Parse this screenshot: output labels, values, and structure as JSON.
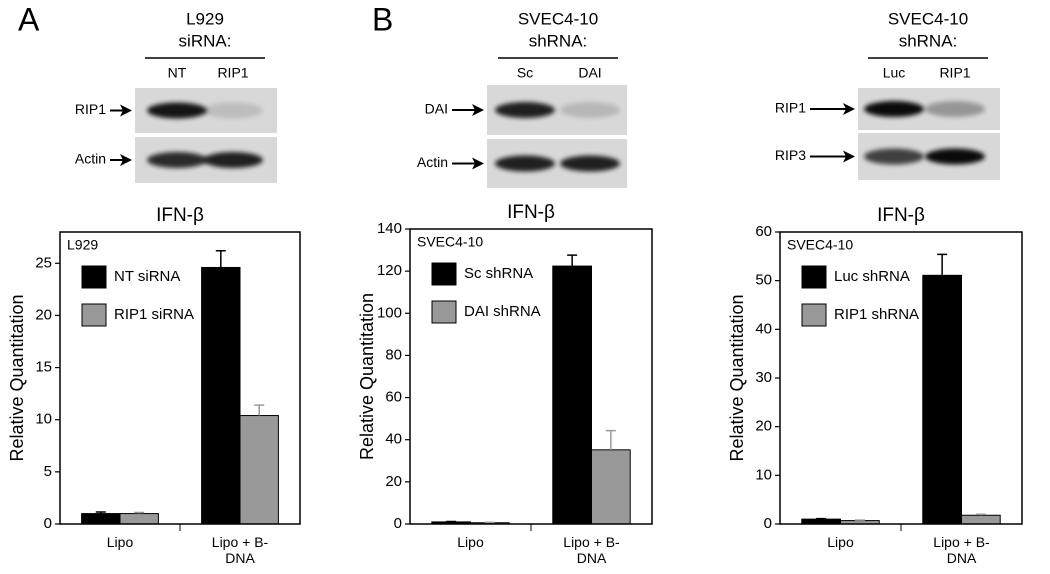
{
  "panel_labels": [
    "A",
    "B"
  ],
  "blots": [
    {
      "header": [
        "L929",
        "siRNA:"
      ],
      "lanes": [
        "NT",
        "RIP1"
      ],
      "rows": [
        "RIP1",
        "Actin"
      ]
    },
    {
      "header": [
        "SVEC4-10",
        "shRNA:"
      ],
      "lanes": [
        "Sc",
        "DAI"
      ],
      "rows": [
        "DAI",
        "Actin"
      ]
    },
    {
      "header": [
        "SVEC4-10",
        "shRNA:"
      ],
      "lanes": [
        "Luc",
        "RIP1"
      ],
      "rows": [
        "RIP1",
        "RIP3"
      ]
    }
  ],
  "chart_data": [
    {
      "type": "bar",
      "title": "IFN-β",
      "inset_label": "L929",
      "y_label": "Relative Quantitation",
      "categories": [
        "Lipo",
        "Lipo + B-DNA"
      ],
      "series": [
        {
          "name": "NT siRNA",
          "color": "#000000",
          "values": [
            1.0,
            24.6
          ],
          "errors": [
            0.15,
            1.6
          ]
        },
        {
          "name": "RIP1 siRNA",
          "color": "#999999",
          "values": [
            1.0,
            10.4
          ],
          "errors": [
            0.1,
            1.0
          ]
        }
      ],
      "ylim": [
        0,
        28
      ],
      "yticks": [
        0,
        5,
        10,
        15,
        20,
        25
      ]
    },
    {
      "type": "bar",
      "title": "IFN-β",
      "inset_label": "SVEC4-10",
      "y_label": "Relative Quantitation",
      "categories": [
        "Lipo",
        "Lipo + B-DNA"
      ],
      "series": [
        {
          "name": "Sc shRNA",
          "color": "#000000",
          "values": [
            1.0,
            122.4
          ],
          "errors": [
            0.2,
            5.2
          ]
        },
        {
          "name": "DAI shRNA",
          "color": "#999999",
          "values": [
            0.6,
            35.2
          ],
          "errors": [
            0.2,
            9.1
          ]
        }
      ],
      "ylim": [
        0,
        140
      ],
      "yticks": [
        0,
        20,
        40,
        60,
        80,
        100,
        120,
        140
      ]
    },
    {
      "type": "bar",
      "title": "IFN-β",
      "inset_label": "SVEC4-10",
      "y_label": "Relative Quantitation",
      "categories": [
        "Lipo",
        "Lipo + B-DNA"
      ],
      "series": [
        {
          "name": "Luc shRNA",
          "color": "#000000",
          "values": [
            1.0,
            51.1
          ],
          "errors": [
            0.1,
            4.3
          ]
        },
        {
          "name": "RIP1 shRNA",
          "color": "#999999",
          "values": [
            0.7,
            1.8
          ],
          "errors": [
            0.1,
            0.2
          ]
        }
      ],
      "ylim": [
        0,
        60
      ],
      "yticks": [
        0,
        10,
        20,
        30,
        40,
        50,
        60
      ]
    }
  ]
}
